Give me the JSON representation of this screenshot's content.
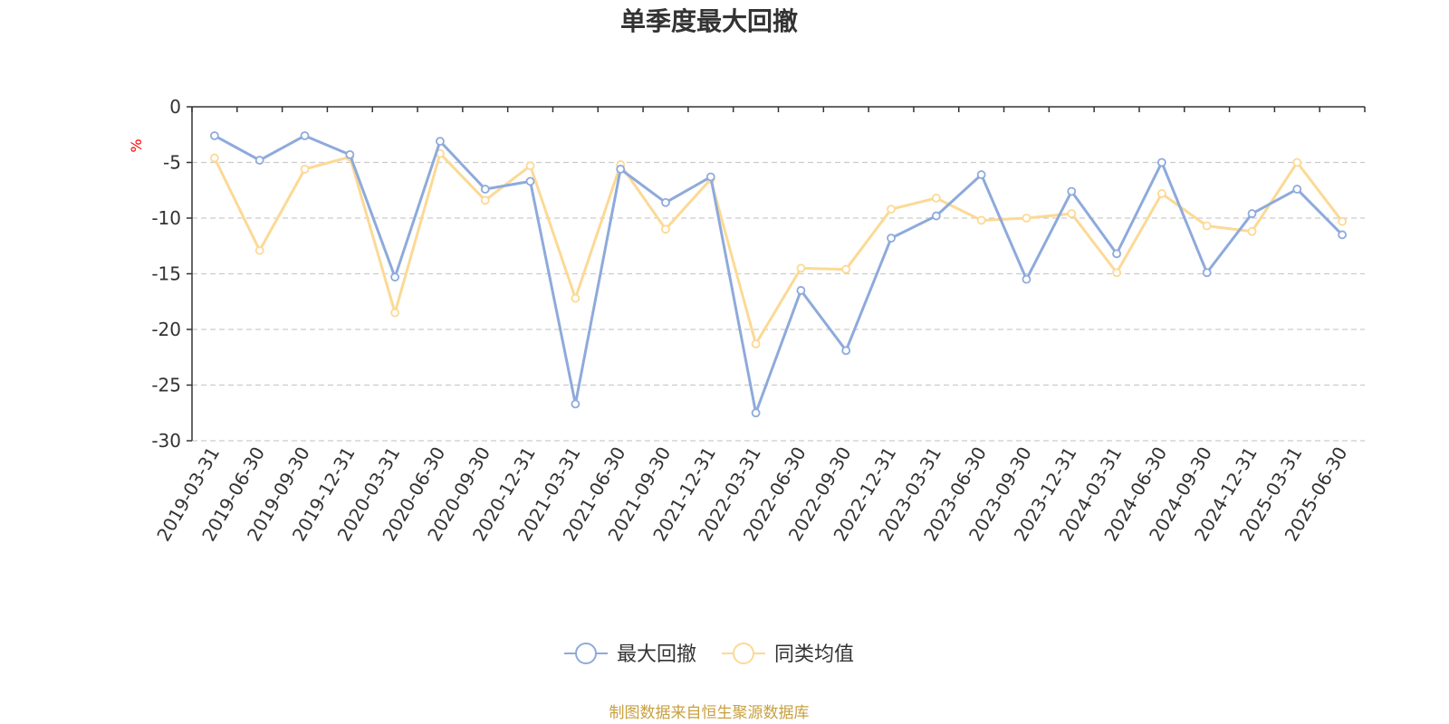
{
  "chart_data": {
    "type": "line",
    "title": "单季度最大回撤",
    "ylabel": "%",
    "ylim": [
      -30,
      0
    ],
    "yticks": [
      0,
      -5,
      -10,
      -15,
      -20,
      -25,
      -30
    ],
    "grid": true,
    "legend_position": "bottom-center",
    "categories": [
      "2019-03-31",
      "2019-06-30",
      "2019-09-30",
      "2019-12-31",
      "2020-03-31",
      "2020-06-30",
      "2020-09-30",
      "2020-12-31",
      "2021-03-31",
      "2021-06-30",
      "2021-09-30",
      "2021-12-31",
      "2022-03-31",
      "2022-06-30",
      "2022-09-30",
      "2022-12-31",
      "2023-03-31",
      "2023-06-30",
      "2023-09-30",
      "2023-12-31",
      "2024-03-31",
      "2024-06-30",
      "2024-09-30",
      "2024-12-31",
      "2025-03-31",
      "2025-06-30"
    ],
    "series": [
      {
        "name": "最大回撤",
        "color": "#8eaadb",
        "values": [
          -2.6,
          -4.8,
          -2.6,
          -4.3,
          -15.3,
          -3.1,
          -7.4,
          -6.7,
          -26.7,
          -5.6,
          -8.6,
          -6.3,
          -27.5,
          -16.5,
          -21.9,
          -11.8,
          -9.8,
          -6.1,
          -15.5,
          -7.6,
          -13.2,
          -5.0,
          -14.9,
          -9.6,
          -7.4,
          -11.5
        ]
      },
      {
        "name": "同类均值",
        "color": "#fcd995",
        "values": [
          -4.6,
          -12.9,
          -5.6,
          -4.5,
          -18.5,
          -4.2,
          -8.4,
          -5.3,
          -17.2,
          -5.2,
          -11.0,
          -6.5,
          -21.3,
          -14.5,
          -14.6,
          -9.2,
          -8.2,
          -10.2,
          -10.0,
          -9.6,
          -14.9,
          -7.8,
          -10.7,
          -11.2,
          -5.0,
          -10.3
        ]
      }
    ],
    "unit_color": "#ff0000"
  },
  "source": {
    "text": "制图数据来自恒生聚源数据库",
    "color": "#c8a040"
  },
  "colors": {
    "axis": "#333333",
    "grid": "#cccccc",
    "text": "#333333"
  }
}
